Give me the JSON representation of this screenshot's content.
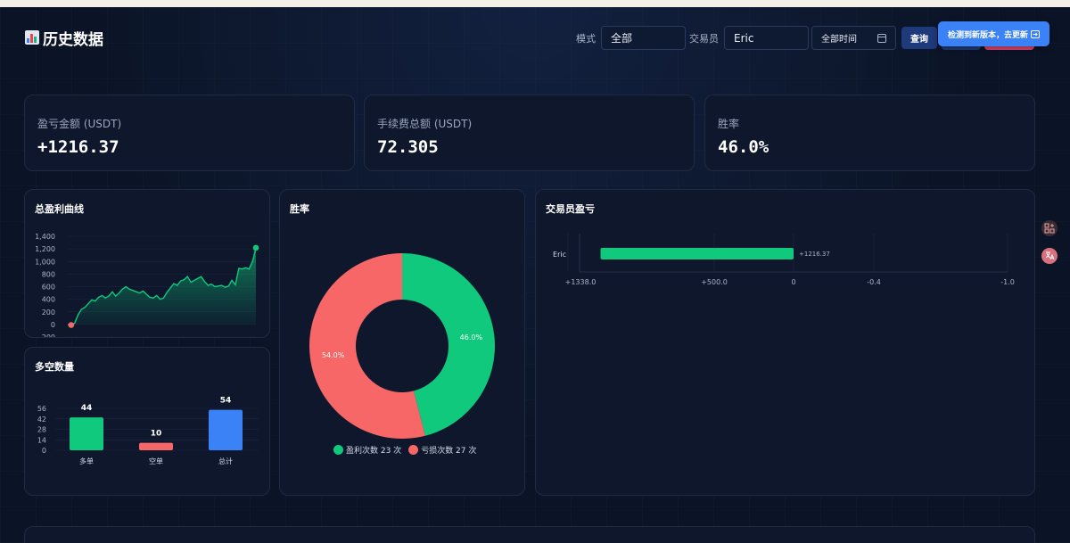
{
  "header": {
    "title": "历史数据",
    "filters": {
      "mode_label": "模式",
      "mode_value": "全部",
      "trader_label": "交易员",
      "trader_value": "Eric",
      "time_value": "全部时间"
    },
    "query_label": "查询",
    "update_banner": "检测到新版本，去更新"
  },
  "stats": [
    {
      "label": "盈亏金额 (USDT)",
      "value": "+1216.37"
    },
    {
      "label": "手续费总额 (USDT)",
      "value": "72.305"
    },
    {
      "label": "胜率",
      "value": "46.0%"
    }
  ],
  "cards": {
    "pnl_curve": "总盈利曲线",
    "long_short": "多空数量",
    "win_rate": "胜率",
    "trader_pnl": "交易员盈亏"
  },
  "colors": {
    "profit": "#10c97c",
    "loss": "#f76767",
    "total": "#3b82f6",
    "accent": "#3b82f6"
  },
  "chart_data": [
    {
      "type": "area",
      "title": "总盈利曲线",
      "ylim": [
        -200,
        1400
      ],
      "yticks": [
        "1,400",
        "1,200",
        "1,000",
        "800",
        "600",
        "400",
        "200",
        "0",
        "-200"
      ],
      "values": [
        0,
        -10,
        20,
        150,
        240,
        270,
        330,
        390,
        370,
        430,
        460,
        420,
        450,
        520,
        450,
        500,
        560,
        600,
        560,
        540,
        520,
        500,
        530,
        480,
        430,
        420,
        460,
        400,
        420,
        510,
        580,
        650,
        620,
        690,
        710,
        760,
        670,
        700,
        730,
        760,
        680,
        620,
        640,
        600,
        610,
        620,
        590,
        610,
        700,
        630,
        890,
        880,
        900,
        880,
        1000,
        1216.37
      ]
    },
    {
      "type": "bar",
      "title": "多空数量",
      "categories": [
        "多单",
        "空单",
        "总计"
      ],
      "values": [
        44,
        10,
        54
      ],
      "yticks": [
        "56",
        "42",
        "28",
        "14",
        "0"
      ],
      "ylim": [
        0,
        56
      ]
    },
    {
      "type": "pie",
      "title": "胜率",
      "slices": [
        {
          "name": "盈利次数 23 次",
          "value": 46.0,
          "label": "46.0%"
        },
        {
          "name": "亏损次数 27 次",
          "value": 54.0,
          "label": "54.0%"
        }
      ]
    },
    {
      "type": "bar",
      "title": "交易员盈亏",
      "orientation": "horizontal",
      "categories": [
        "Eric"
      ],
      "values": [
        1216.37
      ],
      "value_labels": [
        "+1216.37"
      ],
      "xticks": [
        "+1338.0",
        "+500.0",
        "0",
        "-0.4",
        "-1.0"
      ]
    }
  ]
}
